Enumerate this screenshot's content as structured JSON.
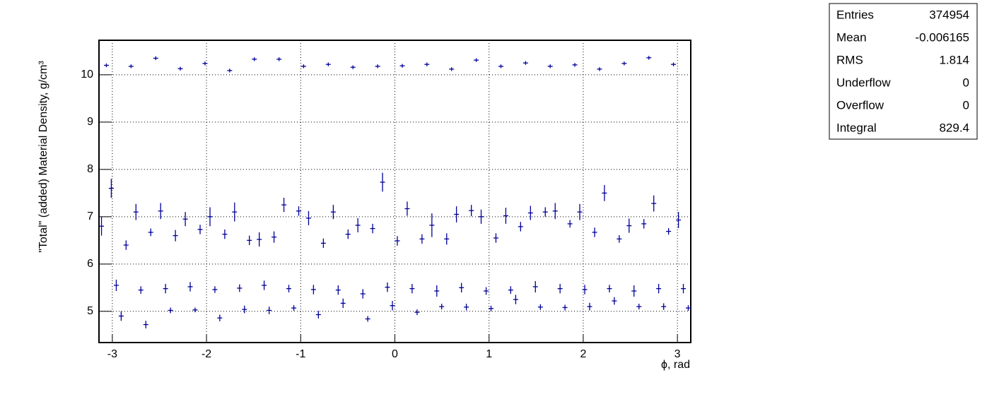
{
  "chart_data": {
    "type": "scatter",
    "x_label": "ϕ, rad",
    "y_label": "\"Total\" (added) Material Density, g/cm³",
    "xlim": [
      -3.1416,
      3.1416
    ],
    "ylim": [
      4.34,
      10.73
    ],
    "xticks": [
      -3,
      -2,
      -1,
      0,
      1,
      2,
      3
    ],
    "yticks": [
      5,
      6,
      7,
      8,
      9,
      10
    ],
    "grid": true,
    "x": [
      -3.115,
      -3.063,
      -3.011,
      -2.958,
      -2.906,
      -2.854,
      -2.801,
      -2.749,
      -2.697,
      -2.644,
      -2.592,
      -2.539,
      -2.487,
      -2.435,
      -2.382,
      -2.33,
      -2.278,
      -2.225,
      -2.173,
      -2.121,
      -2.068,
      -2.016,
      -1.963,
      -1.911,
      -1.859,
      -1.806,
      -1.754,
      -1.702,
      -1.649,
      -1.597,
      -1.545,
      -1.492,
      -1.44,
      -1.388,
      -1.335,
      -1.283,
      -1.23,
      -1.178,
      -1.126,
      -1.073,
      -1.021,
      -0.969,
      -0.916,
      -0.864,
      -0.812,
      -0.759,
      -0.707,
      -0.654,
      -0.602,
      -0.55,
      -0.497,
      -0.445,
      -0.393,
      -0.34,
      -0.288,
      -0.236,
      -0.183,
      -0.131,
      -0.079,
      -0.026,
      0.026,
      0.079,
      0.131,
      0.183,
      0.236,
      0.288,
      0.34,
      0.393,
      0.445,
      0.497,
      0.55,
      0.602,
      0.654,
      0.707,
      0.759,
      0.812,
      0.864,
      0.916,
      0.969,
      1.021,
      1.073,
      1.126,
      1.178,
      1.23,
      1.283,
      1.335,
      1.388,
      1.44,
      1.492,
      1.545,
      1.597,
      1.649,
      1.702,
      1.754,
      1.806,
      1.859,
      1.911,
      1.963,
      2.016,
      2.068,
      2.121,
      2.173,
      2.225,
      2.278,
      2.33,
      2.382,
      2.435,
      2.487,
      2.539,
      2.592,
      2.644,
      2.697,
      2.749,
      2.801,
      2.854,
      2.906,
      2.958,
      3.011,
      3.063,
      3.115
    ],
    "series": [
      {
        "color": "#000099",
        "values": [
          6.8,
          10.2,
          7.6,
          5.55,
          4.9,
          6.4,
          10.18,
          7.1,
          5.45,
          4.72,
          6.67,
          10.35,
          7.12,
          5.48,
          5.02,
          6.6,
          10.13,
          6.95,
          5.52,
          5.03,
          6.73,
          10.24,
          7.0,
          5.46,
          4.86,
          6.63,
          10.09,
          7.1,
          5.49,
          5.04,
          6.5,
          10.33,
          6.52,
          5.55,
          5.02,
          6.57,
          10.33,
          7.25,
          5.48,
          5.07,
          7.12,
          10.18,
          6.97,
          5.46,
          4.93,
          6.44,
          10.22,
          7.1,
          5.45,
          5.17,
          6.63,
          10.16,
          6.82,
          5.37,
          4.84,
          6.75,
          10.18,
          7.73,
          5.51,
          5.12,
          6.49,
          10.19,
          7.17,
          5.48,
          4.98,
          6.53,
          10.22,
          6.82,
          5.43,
          5.1,
          6.53,
          10.12,
          7.05,
          5.5,
          5.09,
          7.13,
          10.31,
          7.0,
          5.43,
          5.06,
          6.55,
          10.18,
          7.02,
          5.45,
          5.25,
          6.79,
          10.25,
          7.08,
          5.52,
          5.09,
          7.1,
          10.18,
          7.12,
          5.48,
          5.08,
          6.85,
          10.21,
          7.1,
          5.46,
          5.1,
          6.67,
          10.12,
          7.5,
          5.48,
          5.22,
          6.53,
          10.24,
          6.81,
          5.43,
          5.1,
          6.85,
          10.36,
          7.28,
          5.48,
          5.1,
          6.69,
          10.22,
          6.93,
          5.48,
          5.07
        ],
        "errors": [
          0.2,
          0.04,
          0.2,
          0.12,
          0.1,
          0.1,
          0.04,
          0.17,
          0.08,
          0.08,
          0.08,
          0.04,
          0.17,
          0.1,
          0.06,
          0.12,
          0.04,
          0.15,
          0.1,
          0.05,
          0.1,
          0.04,
          0.2,
          0.07,
          0.07,
          0.1,
          0.04,
          0.2,
          0.08,
          0.08,
          0.1,
          0.04,
          0.15,
          0.1,
          0.08,
          0.12,
          0.04,
          0.15,
          0.08,
          0.06,
          0.1,
          0.04,
          0.15,
          0.1,
          0.08,
          0.1,
          0.04,
          0.15,
          0.1,
          0.1,
          0.1,
          0.04,
          0.15,
          0.1,
          0.06,
          0.1,
          0.04,
          0.2,
          0.1,
          0.1,
          0.1,
          0.04,
          0.15,
          0.1,
          0.06,
          0.1,
          0.04,
          0.25,
          0.12,
          0.06,
          0.12,
          0.04,
          0.17,
          0.1,
          0.07,
          0.12,
          0.04,
          0.15,
          0.08,
          0.06,
          0.1,
          0.04,
          0.17,
          0.08,
          0.1,
          0.1,
          0.04,
          0.15,
          0.12,
          0.06,
          0.1,
          0.04,
          0.17,
          0.1,
          0.06,
          0.08,
          0.04,
          0.17,
          0.1,
          0.08,
          0.1,
          0.04,
          0.17,
          0.08,
          0.08,
          0.08,
          0.04,
          0.15,
          0.12,
          0.06,
          0.1,
          0.04,
          0.17,
          0.1,
          0.07,
          0.07,
          0.04,
          0.17,
          0.1,
          0.06
        ]
      }
    ],
    "stats_box": [
      [
        "Entries",
        374954
      ],
      [
        "Mean",
        -0.006165
      ],
      [
        "RMS",
        1.814
      ],
      [
        "Underflow",
        0
      ],
      [
        "Overflow",
        0
      ],
      [
        "Integral",
        829.4
      ]
    ]
  }
}
